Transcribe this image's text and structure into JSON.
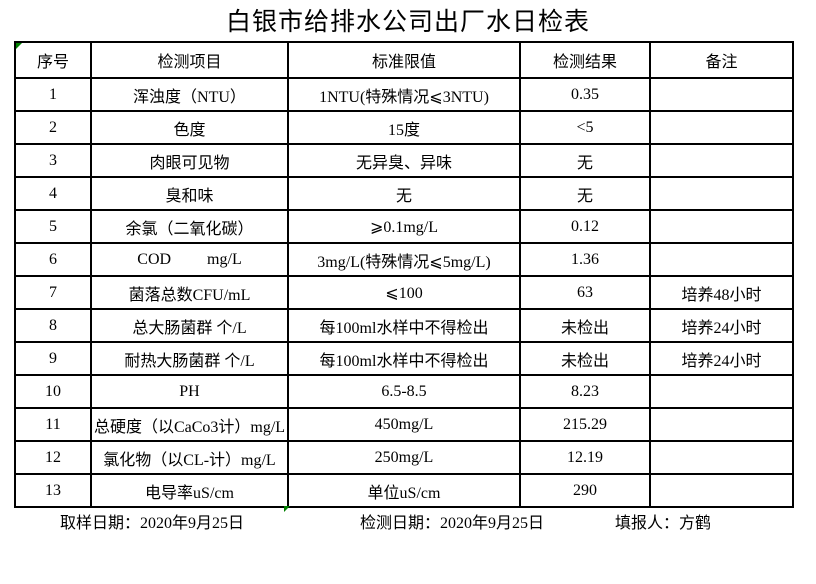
{
  "title": "白银市给排水公司出厂水日检表",
  "table": {
    "headers": [
      "序号",
      "检测项目",
      "标准限值",
      "检测结果",
      "备注"
    ],
    "rows": [
      {
        "no": "1",
        "item": "浑浊度（NTU）",
        "standard": "1NTU(特殊情况⩽3NTU)",
        "result": "0.35",
        "remark": ""
      },
      {
        "no": "2",
        "item": "色度",
        "standard": "15度",
        "result": "<5",
        "remark": ""
      },
      {
        "no": "3",
        "item": "肉眼可见物",
        "standard": "无异臭、异味",
        "result": "无",
        "remark": ""
      },
      {
        "no": "4",
        "item": "臭和味",
        "standard": "无",
        "result": "无",
        "remark": ""
      },
      {
        "no": "5",
        "item": "余氯（二氧化碳）",
        "standard": "⩾0.1mg/L",
        "result": "0.12",
        "remark": ""
      },
      {
        "no": "6",
        "item": "COD         mg/L",
        "standard": "3mg/L(特殊情况⩽5mg/L)",
        "result": "1.36",
        "remark": ""
      },
      {
        "no": "7",
        "item": "菌落总数CFU/mL",
        "standard": "⩽100",
        "result": "63",
        "remark": "培养48小时"
      },
      {
        "no": "8",
        "item": "总大肠菌群 个/L",
        "standard": "每100ml水样中不得检出",
        "result": "未检出",
        "remark": "培养24小时"
      },
      {
        "no": "9",
        "item": "耐热大肠菌群 个/L",
        "standard": "每100ml水样中不得检出",
        "result": "未检出",
        "remark": "培养24小时"
      },
      {
        "no": "10",
        "item": "PH",
        "standard": "6.5-8.5",
        "result": "8.23",
        "remark": ""
      },
      {
        "no": "11",
        "item": "总硬度（以CaCo3计）mg/L",
        "standard": "450mg/L",
        "result": "215.29",
        "remark": ""
      },
      {
        "no": "12",
        "item": "氯化物（以CL-计）mg/L",
        "standard": "250mg/L",
        "result": "12.19",
        "remark": ""
      },
      {
        "no": "13",
        "item": "电导率uS/cm",
        "standard": "单位uS/cm",
        "result": "290",
        "remark": ""
      }
    ]
  },
  "footer": {
    "sampling_date": "取样日期：2020年9月25日",
    "testing_date": "检测日期：2020年9月25日",
    "reporter": "填报人：方鹤"
  },
  "colors": {
    "text": "#000000",
    "border": "#000000",
    "background": "#ffffff",
    "error_indicator": "#008000"
  }
}
